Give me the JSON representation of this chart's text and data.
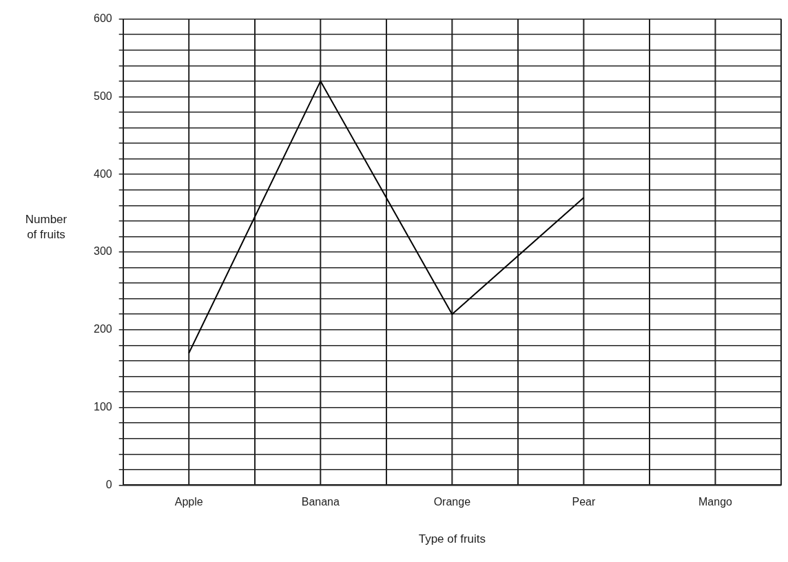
{
  "chart_data": {
    "type": "line",
    "xlabel": "Type of fruits",
    "ylabel": "Number of fruits",
    "categories": [
      "Apple",
      "Banana",
      "Orange",
      "Pear",
      "Mango"
    ],
    "series": [
      {
        "color": "#000000",
        "values": [
          170,
          520,
          220,
          370,
          null
        ]
      }
    ],
    "ylim": [
      0,
      600
    ],
    "yticks": [
      0,
      {
        "value": 20,
        "label": null
      },
      {
        "value": 40,
        "label": null
      },
      {
        "value": 60,
        "label": null
      },
      {
        "value": 80,
        "label": null
      },
      100,
      {
        "value": 120,
        "label": null
      },
      {
        "value": 140,
        "label": null
      },
      {
        "value": 160,
        "label": null
      },
      {
        "value": 180,
        "label": null
      },
      200,
      {
        "value": 220,
        "label": null
      },
      {
        "value": 240,
        "label": null
      },
      {
        "value": 260,
        "label": null
      },
      {
        "value": 280,
        "label": null
      },
      300,
      {
        "value": 320,
        "label": null
      },
      {
        "value": 340,
        "label": null
      },
      {
        "value": 360,
        "label": null
      },
      {
        "value": 380,
        "label": null
      },
      400,
      {
        "value": 420,
        "label": null
      },
      {
        "value": 440,
        "label": null
      },
      {
        "value": 460,
        "label": null
      },
      {
        "value": 480,
        "label": null
      },
      500,
      {
        "value": 520,
        "label": null
      },
      {
        "value": 540,
        "label": null
      },
      {
        "value": 560,
        "label": null
      },
      {
        "value": 580,
        "label": null
      },
      600
    ],
    "grid": true,
    "marker": "none",
    "line_style": "solid",
    "legend": false
  }
}
